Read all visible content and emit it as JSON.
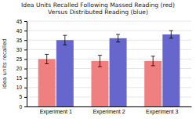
{
  "chart_data": {
    "type": "bar",
    "title": [
      "Idea Units Recalled Following Massed Reading (red)",
      "Versus Distributed Reading (blue)"
    ],
    "ylabel": "idea units recalled",
    "categories": [
      "Experiment 1",
      "Experiment 2",
      "Experiment 3"
    ],
    "series": [
      {
        "color": "#f08080",
        "values": [
          25,
          24,
          24
        ],
        "errors": [
          2.5,
          3.0,
          2.5
        ]
      },
      {
        "color": "#6666cc",
        "values": [
          35,
          36,
          38
        ],
        "errors": [
          2.5,
          2.0,
          2.0
        ]
      }
    ],
    "ylim": [
      0,
      45
    ],
    "yticks": [
      0,
      5,
      10,
      15,
      20,
      25,
      30,
      35,
      40,
      45
    ],
    "grid": true
  }
}
